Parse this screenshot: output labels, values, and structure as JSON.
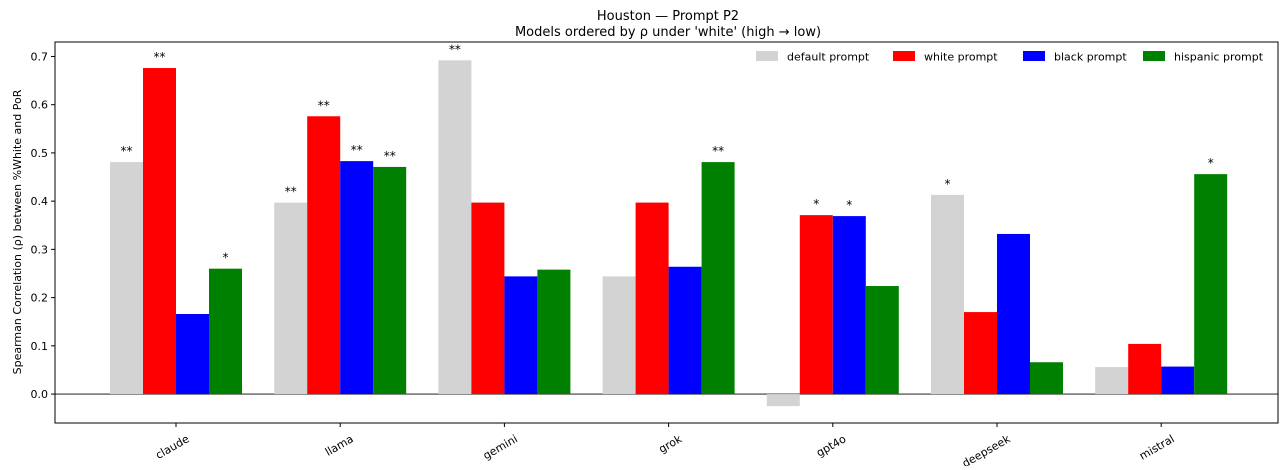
{
  "chart_data": {
    "type": "bar",
    "title": "Houston — Prompt P2",
    "subtitle": "Models ordered by ρ under 'white' (high → low)",
    "xlabel": "",
    "ylabel": "Spearman Correlation (ρ) between %White and PoR",
    "ylim": [
      -0.06,
      0.73
    ],
    "yticks": [
      "0.0",
      "0.1",
      "0.2",
      "0.3",
      "0.4",
      "0.5",
      "0.6",
      "0.7"
    ],
    "categories": [
      "claude",
      "llama",
      "gemini",
      "grok",
      "gpt4o",
      "deepseek",
      "mistral"
    ],
    "legend_position": "top-right",
    "grid": false,
    "zero_line": true,
    "series": [
      {
        "name": "default prompt",
        "color": "#d3d3d3",
        "values": [
          0.481,
          0.397,
          0.692,
          0.244,
          -0.025,
          0.413,
          0.056
        ],
        "significance": [
          "**",
          "**",
          "**",
          "",
          "",
          "*",
          ""
        ]
      },
      {
        "name": "white prompt",
        "color": "#ff0000",
        "values": [
          0.676,
          0.576,
          0.397,
          0.397,
          0.371,
          0.17,
          0.104
        ],
        "significance": [
          "**",
          "**",
          "",
          "",
          "*",
          "",
          ""
        ]
      },
      {
        "name": "black prompt",
        "color": "#0000ff",
        "values": [
          0.166,
          0.483,
          0.244,
          0.264,
          0.369,
          0.332,
          0.057
        ],
        "significance": [
          "",
          "**",
          "",
          "",
          "*",
          "",
          ""
        ]
      },
      {
        "name": "hispanic prompt",
        "color": "#008000",
        "values": [
          0.26,
          0.471,
          0.258,
          0.481,
          0.224,
          0.066,
          0.456
        ],
        "significance": [
          "*",
          "**",
          "",
          "**",
          "",
          "",
          "*"
        ]
      }
    ]
  }
}
